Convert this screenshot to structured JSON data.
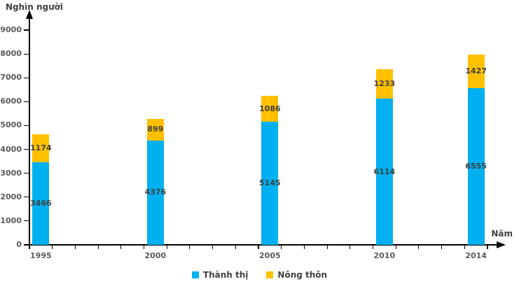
{
  "chart_data": {
    "type": "bar",
    "stacked": true,
    "title": "",
    "y_axis_title": "Nghìn người",
    "x_axis_title": "Năm",
    "categories": [
      "1995",
      "2000",
      "2005",
      "2010",
      "2014"
    ],
    "series": [
      {
        "name": "Thành thị",
        "color": "#00B0F0",
        "values": [
          3466,
          4376,
          5145,
          6114,
          6555
        ]
      },
      {
        "name": "Nông thôn",
        "color": "#FFC000",
        "values": [
          1174,
          899,
          1086,
          1233,
          1427
        ]
      }
    ],
    "totals": [
      4640,
      5275,
      6231,
      7347,
      7982
    ],
    "ylim": [
      0,
      9000
    ],
    "y_ticks": [
      0,
      1000,
      2000,
      3000,
      4000,
      5000,
      6000,
      7000,
      8000,
      9000
    ],
    "x_year_range": [
      1995,
      2014
    ],
    "grid": false,
    "data_labels": true,
    "legend_position": "bottom",
    "axis_color": "#000000",
    "data_label_color": "#404040",
    "tick_label_color": "#595959",
    "background_color": "#FFFFFF"
  }
}
